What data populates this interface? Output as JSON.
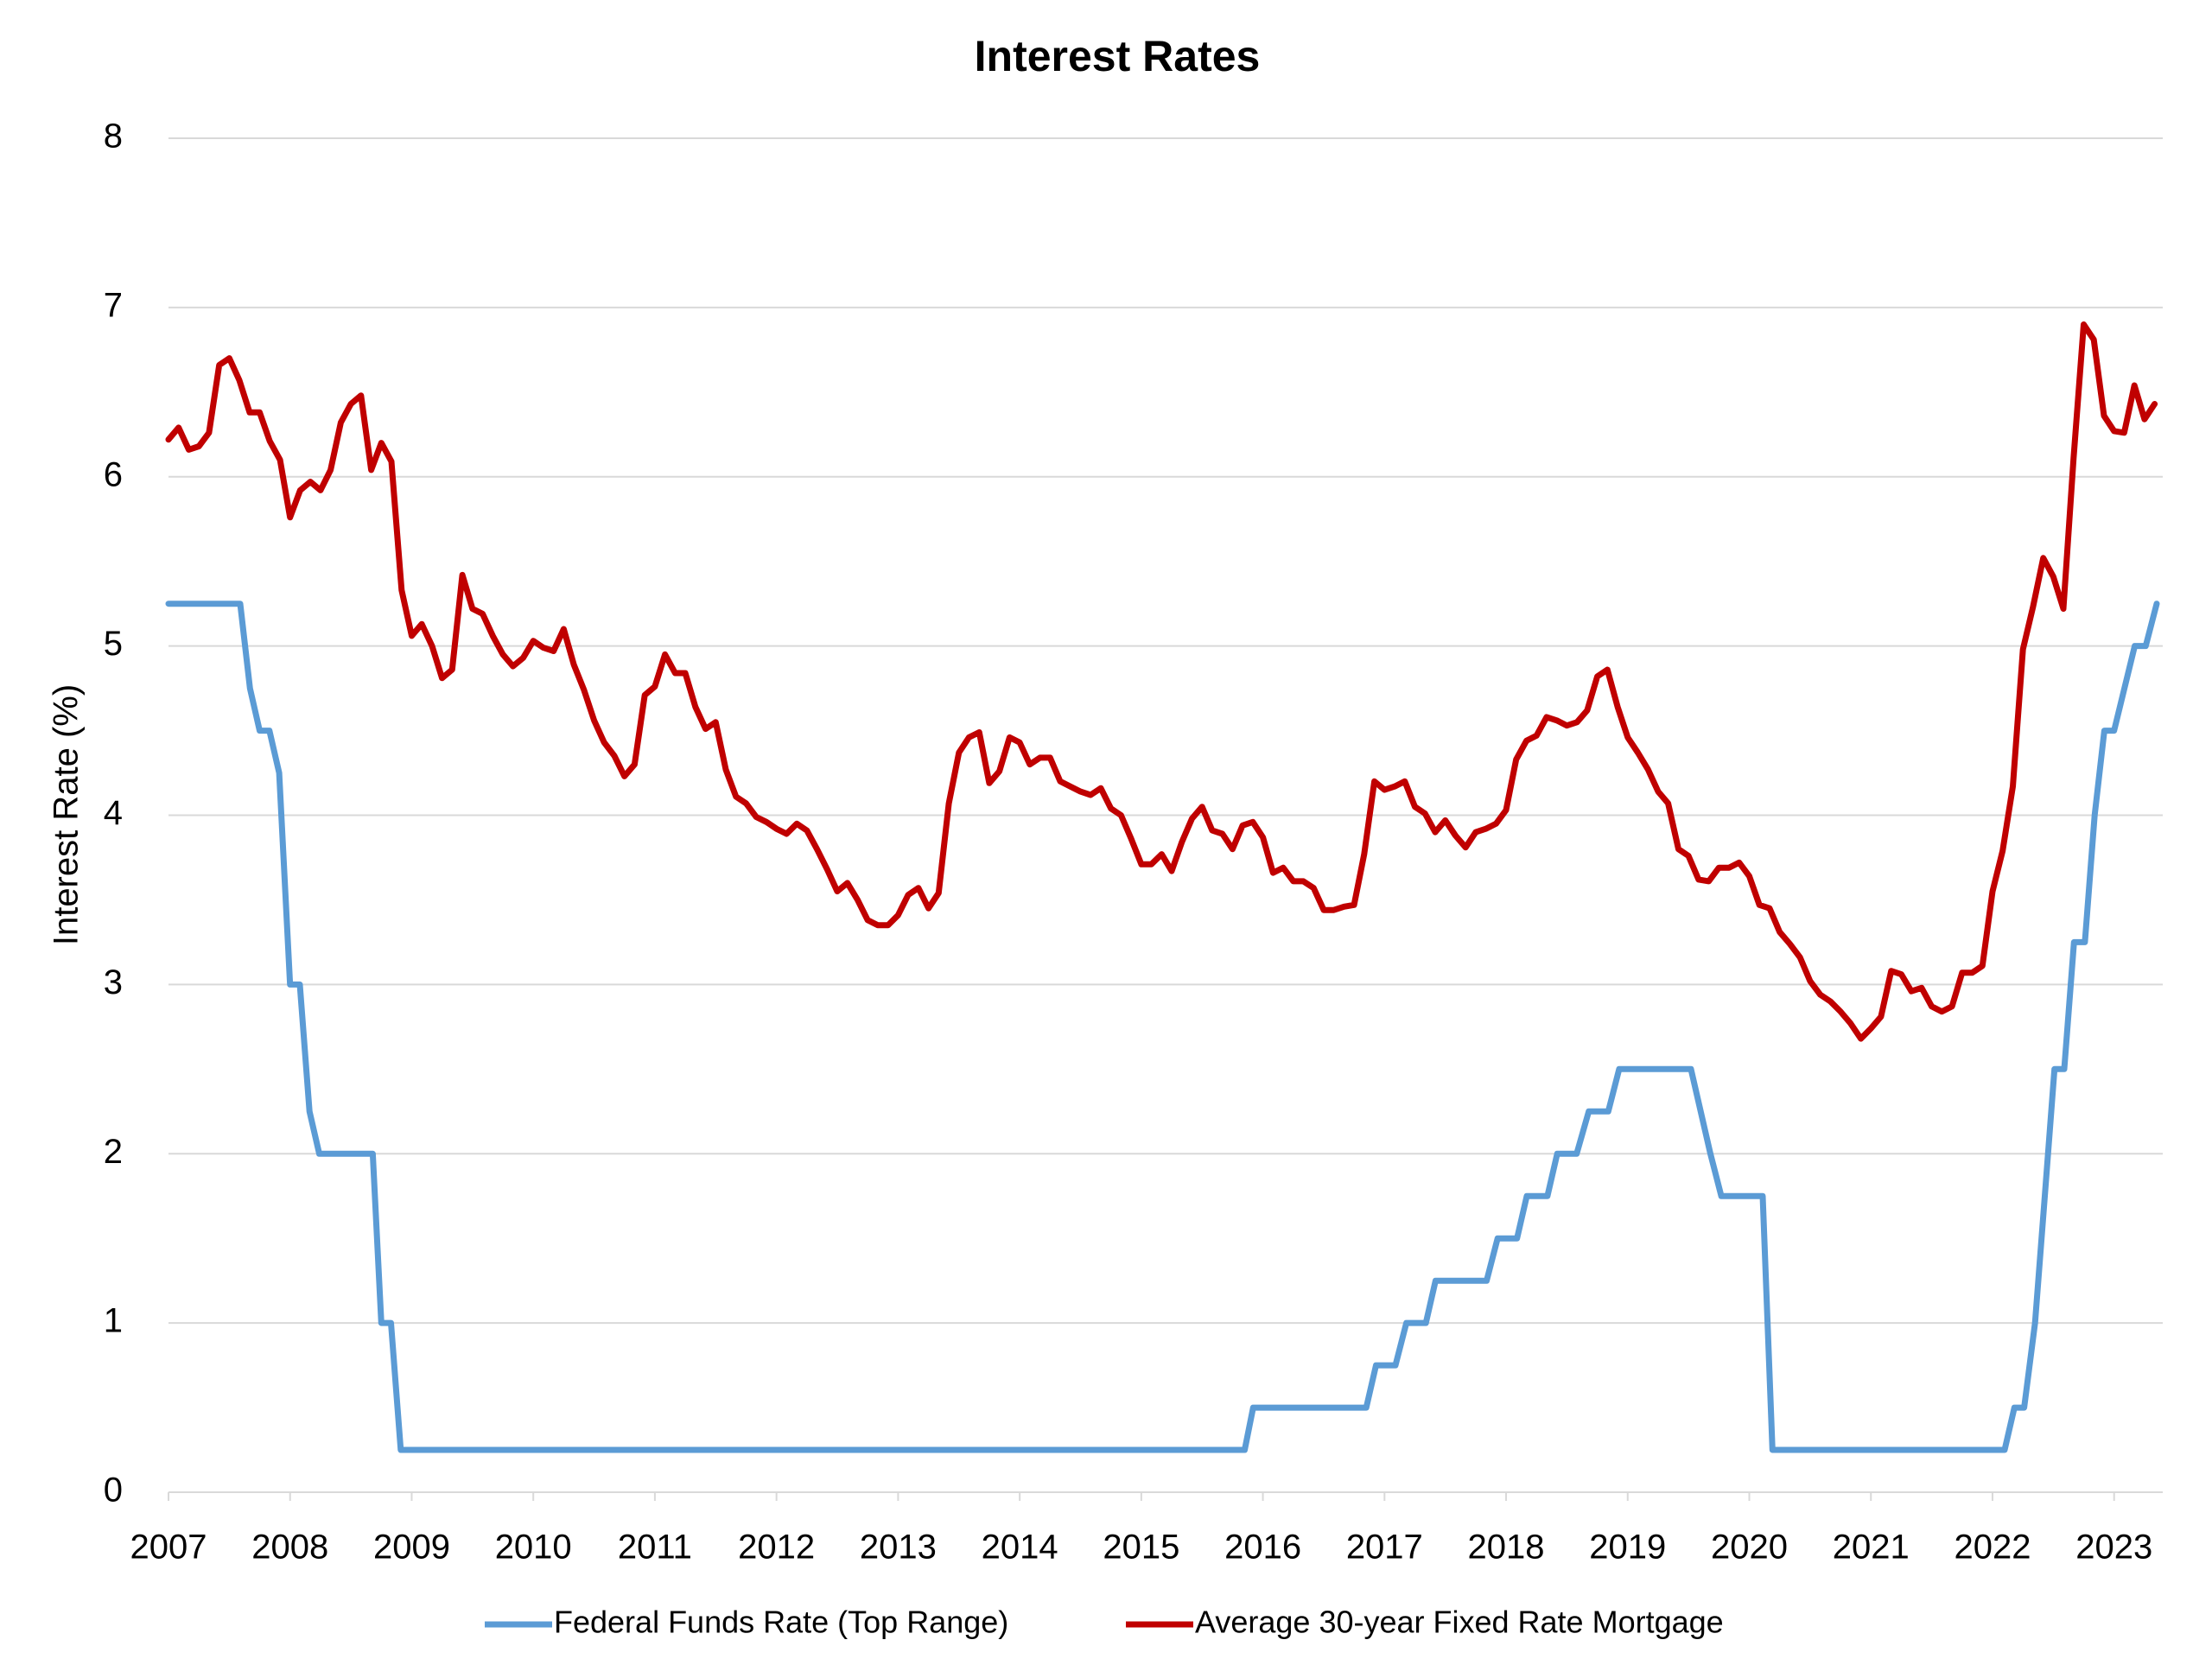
{
  "chart_data": {
    "type": "line",
    "title": "Interest Rates",
    "y_label": "Interest Rate (%)",
    "xlim": [
      2007,
      2023.4
    ],
    "xticks": [
      2007,
      2008,
      2009,
      2010,
      2011,
      2012,
      2013,
      2014,
      2015,
      2016,
      2017,
      2018,
      2019,
      2020,
      2021,
      2022,
      2023
    ],
    "ylim": [
      0,
      8
    ],
    "yticks": [
      0,
      1,
      2,
      3,
      4,
      5,
      6,
      7,
      8
    ],
    "grid": true,
    "legend": "bottom",
    "series": [
      {
        "name": "Federal Funds Rate (Top Range)",
        "color": "#5b9bd5",
        "x": [
          2007.0,
          2007.59,
          2007.67,
          2007.75,
          2007.83,
          2007.91,
          2008.0,
          2008.08,
          2008.16,
          2008.24,
          2008.68,
          2008.75,
          2008.83,
          2008.91,
          2015.85,
          2015.92,
          2016.85,
          2016.93,
          2017.09,
          2017.18,
          2017.34,
          2017.42,
          2017.84,
          2017.93,
          2018.09,
          2018.17,
          2018.34,
          2018.42,
          2018.58,
          2018.68,
          2018.84,
          2018.93,
          2019.52,
          2019.68,
          2019.77,
          2020.11,
          2020.19,
          2022.1,
          2022.18,
          2022.26,
          2022.35,
          2022.43,
          2022.51,
          2022.59,
          2022.67,
          2022.76,
          2022.84,
          2022.92,
          2023.0,
          2023.17,
          2023.26,
          2023.35
        ],
        "values": [
          5.25,
          5.25,
          4.75,
          4.5,
          4.5,
          4.25,
          3,
          3,
          2.25,
          2,
          2,
          1,
          1,
          0.25,
          0.25,
          0.5,
          0.5,
          0.75,
          0.75,
          1,
          1,
          1.25,
          1.25,
          1.5,
          1.5,
          1.75,
          1.75,
          2,
          2,
          2.25,
          2.25,
          2.5,
          2.5,
          2,
          1.75,
          1.75,
          0.25,
          0.25,
          0.5,
          0.5,
          1,
          1.75,
          2.5,
          2.5,
          3.25,
          3.25,
          4,
          4.5,
          4.5,
          5,
          5,
          5.25
        ]
      },
      {
        "name": "Average 30-year Fixed Rate Mortgage",
        "color": "#c00000",
        "x": [
          2007.0,
          2007.083,
          2007.167,
          2007.25,
          2007.333,
          2007.417,
          2007.5,
          2007.583,
          2007.667,
          2007.75,
          2007.833,
          2007.917,
          2008.0,
          2008.083,
          2008.167,
          2008.25,
          2008.333,
          2008.417,
          2008.5,
          2008.583,
          2008.667,
          2008.75,
          2008.833,
          2008.917,
          2009.0,
          2009.083,
          2009.167,
          2009.25,
          2009.333,
          2009.417,
          2009.5,
          2009.583,
          2009.667,
          2009.75,
          2009.833,
          2009.917,
          2010.0,
          2010.083,
          2010.167,
          2010.25,
          2010.333,
          2010.417,
          2010.5,
          2010.583,
          2010.667,
          2010.75,
          2010.833,
          2010.917,
          2011.0,
          2011.083,
          2011.167,
          2011.25,
          2011.333,
          2011.417,
          2011.5,
          2011.583,
          2011.667,
          2011.75,
          2011.833,
          2011.917,
          2012.0,
          2012.083,
          2012.167,
          2012.25,
          2012.333,
          2012.417,
          2012.5,
          2012.583,
          2012.667,
          2012.75,
          2012.833,
          2012.917,
          2013.0,
          2013.083,
          2013.167,
          2013.25,
          2013.333,
          2013.417,
          2013.5,
          2013.583,
          2013.667,
          2013.75,
          2013.833,
          2013.917,
          2014.0,
          2014.083,
          2014.167,
          2014.25,
          2014.333,
          2014.417,
          2014.5,
          2014.583,
          2014.667,
          2014.75,
          2014.833,
          2014.917,
          2015.0,
          2015.083,
          2015.167,
          2015.25,
          2015.333,
          2015.417,
          2015.5,
          2015.583,
          2015.667,
          2015.75,
          2015.833,
          2015.917,
          2016.0,
          2016.083,
          2016.167,
          2016.25,
          2016.333,
          2016.417,
          2016.5,
          2016.583,
          2016.667,
          2016.75,
          2016.833,
          2016.917,
          2017.0,
          2017.083,
          2017.167,
          2017.25,
          2017.333,
          2017.417,
          2017.5,
          2017.583,
          2017.667,
          2017.75,
          2017.833,
          2017.917,
          2018.0,
          2018.083,
          2018.167,
          2018.25,
          2018.333,
          2018.417,
          2018.5,
          2018.583,
          2018.667,
          2018.75,
          2018.833,
          2018.917,
          2019.0,
          2019.083,
          2019.167,
          2019.25,
          2019.333,
          2019.417,
          2019.5,
          2019.583,
          2019.667,
          2019.75,
          2019.833,
          2019.917,
          2020.0,
          2020.083,
          2020.167,
          2020.25,
          2020.333,
          2020.417,
          2020.5,
          2020.583,
          2020.667,
          2020.75,
          2020.833,
          2020.917,
          2021.0,
          2021.083,
          2021.167,
          2021.25,
          2021.333,
          2021.417,
          2021.5,
          2021.583,
          2021.667,
          2021.75,
          2021.833,
          2021.917,
          2022.0,
          2022.083,
          2022.167,
          2022.25,
          2022.333,
          2022.417,
          2022.5,
          2022.583,
          2022.667,
          2022.75,
          2022.833,
          2022.917,
          2023.0,
          2023.083,
          2023.167,
          2023.25,
          2023.333
        ],
        "values": [
          6.22,
          6.29,
          6.16,
          6.18,
          6.26,
          6.66,
          6.7,
          6.57,
          6.38,
          6.38,
          6.21,
          6.1,
          5.76,
          5.92,
          5.97,
          5.92,
          6.04,
          6.32,
          6.43,
          6.48,
          6.04,
          6.2,
          6.09,
          5.33,
          5.06,
          5.13,
          5.0,
          4.81,
          4.86,
          5.42,
          5.22,
          5.19,
          5.06,
          4.95,
          4.88,
          4.93,
          5.03,
          4.99,
          4.97,
          5.1,
          4.89,
          4.74,
          4.56,
          4.43,
          4.35,
          4.23,
          4.3,
          4.71,
          4.76,
          4.95,
          4.84,
          4.84,
          4.64,
          4.51,
          4.55,
          4.27,
          4.11,
          4.07,
          3.99,
          3.96,
          3.92,
          3.89,
          3.95,
          3.91,
          3.8,
          3.68,
          3.55,
          3.6,
          3.5,
          3.38,
          3.35,
          3.35,
          3.41,
          3.53,
          3.57,
          3.45,
          3.54,
          4.07,
          4.37,
          4.46,
          4.49,
          4.19,
          4.26,
          4.46,
          4.43,
          4.3,
          4.34,
          4.34,
          4.2,
          4.17,
          4.14,
          4.12,
          4.16,
          4.04,
          4.0,
          3.86,
          3.71,
          3.71,
          3.77,
          3.67,
          3.84,
          3.98,
          4.05,
          3.91,
          3.89,
          3.8,
          3.94,
          3.96,
          3.87,
          3.66,
          3.69,
          3.61,
          3.61,
          3.57,
          3.44,
          3.44,
          3.46,
          3.47,
          3.77,
          4.2,
          4.15,
          4.17,
          4.2,
          4.05,
          4.01,
          3.9,
          3.97,
          3.88,
          3.81,
          3.9,
          3.92,
          3.95,
          4.03,
          4.33,
          4.44,
          4.47,
          4.58,
          4.56,
          4.53,
          4.55,
          4.62,
          4.82,
          4.86,
          4.64,
          4.46,
          4.37,
          4.27,
          4.14,
          4.07,
          3.8,
          3.76,
          3.62,
          3.61,
          3.69,
          3.69,
          3.72,
          3.64,
          3.47,
          3.45,
          3.31,
          3.24,
          3.16,
          3.02,
          2.94,
          2.9,
          2.84,
          2.77,
          2.68,
          2.74,
          2.81,
          3.08,
          3.06,
          2.96,
          2.98,
          2.87,
          2.84,
          2.87,
          3.07,
          3.07,
          3.11,
          3.55,
          3.79,
          4.17,
          4.98,
          5.23,
          5.52,
          5.41,
          5.22,
          6.11,
          6.9,
          6.81,
          6.36,
          6.27,
          6.26,
          6.54,
          6.34,
          6.43
        ]
      }
    ]
  }
}
